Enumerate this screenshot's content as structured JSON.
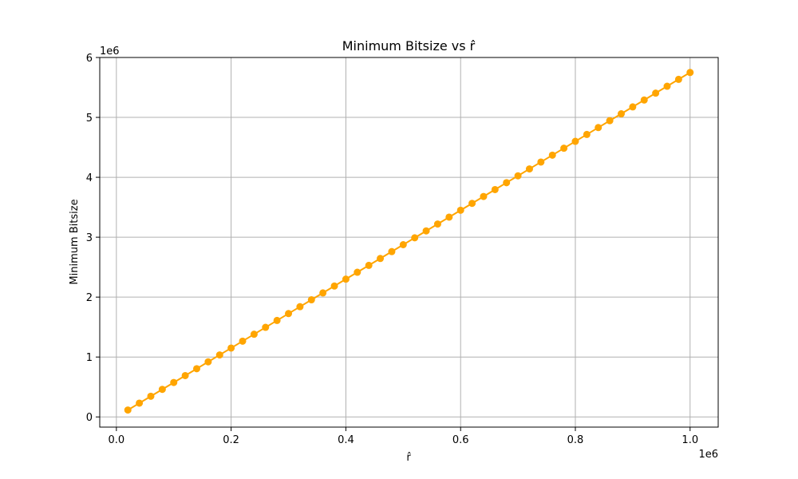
{
  "chart_data": {
    "type": "line",
    "title": "Minimum Bitsize vs r̂",
    "xlabel": "r̂",
    "ylabel": "Minimum Bitsize",
    "x_offset_label": "1e6",
    "y_offset_label": "1e6",
    "xlim": [
      -0.029,
      1.049
    ],
    "ylim": [
      -0.17,
      6.0
    ],
    "x_ticks": [
      0.0,
      0.2,
      0.4,
      0.6,
      0.8,
      1.0
    ],
    "x_tick_labels": [
      "0.0",
      "0.2",
      "0.4",
      "0.6",
      "0.8",
      "1.0"
    ],
    "y_ticks": [
      0,
      1,
      2,
      3,
      4,
      5,
      6
    ],
    "y_tick_labels": [
      "0",
      "1",
      "2",
      "3",
      "4",
      "5",
      "6"
    ],
    "grid": true,
    "color": "#FFA500",
    "series": [
      {
        "x": [
          0.02,
          0.04,
          0.06,
          0.08,
          0.1,
          0.12,
          0.14,
          0.16,
          0.18,
          0.2,
          0.22,
          0.24,
          0.26,
          0.28,
          0.3,
          0.32,
          0.34,
          0.36,
          0.38,
          0.4,
          0.42,
          0.44,
          0.46,
          0.48,
          0.5,
          0.52,
          0.54,
          0.56,
          0.58,
          0.6,
          0.62,
          0.64,
          0.66,
          0.68,
          0.7,
          0.72,
          0.74,
          0.76,
          0.78,
          0.8,
          0.82,
          0.84,
          0.86,
          0.88,
          0.9,
          0.92,
          0.94,
          0.96,
          0.98,
          1.0
        ],
        "values": [
          0.115,
          0.23,
          0.345,
          0.46,
          0.575,
          0.69,
          0.805,
          0.92,
          1.035,
          1.15,
          1.265,
          1.38,
          1.495,
          1.61,
          1.725,
          1.84,
          1.955,
          2.07,
          2.185,
          2.3,
          2.415,
          2.53,
          2.645,
          2.76,
          2.875,
          2.99,
          3.105,
          3.22,
          3.335,
          3.45,
          3.565,
          3.68,
          3.795,
          3.91,
          4.025,
          4.14,
          4.255,
          4.37,
          4.485,
          4.6,
          4.715,
          4.83,
          4.945,
          5.06,
          5.175,
          5.29,
          5.405,
          5.52,
          5.635,
          5.75
        ]
      }
    ]
  }
}
